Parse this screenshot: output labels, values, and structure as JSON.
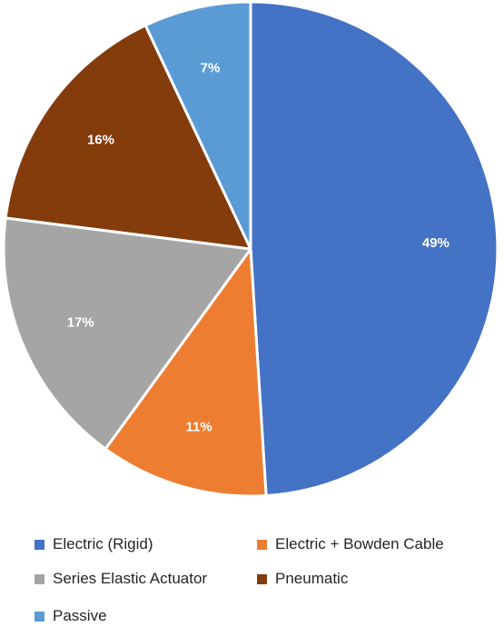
{
  "chart_data": {
    "type": "pie",
    "title": "",
    "slices": [
      {
        "label": "Electric (Rigid)",
        "value": 49,
        "value_label": "49%",
        "color": "#4472C4"
      },
      {
        "label": "Electric + Bowden Cable",
        "value": 11,
        "value_label": "11%",
        "color": "#ED7D31"
      },
      {
        "label": "Series Elastic Actuator",
        "value": 17,
        "value_label": "17%",
        "color": "#A5A5A5"
      },
      {
        "label": "Pneumatic",
        "value": 16,
        "value_label": "16%",
        "color": "#843C0C"
      },
      {
        "label": "Passive",
        "value": 7,
        "value_label": "7%",
        "color": "#5B9BD5"
      }
    ],
    "start_angle_deg": 0,
    "direction": "clockwise",
    "slice_border_color": "#FFFFFF",
    "legend_position": "bottom"
  }
}
